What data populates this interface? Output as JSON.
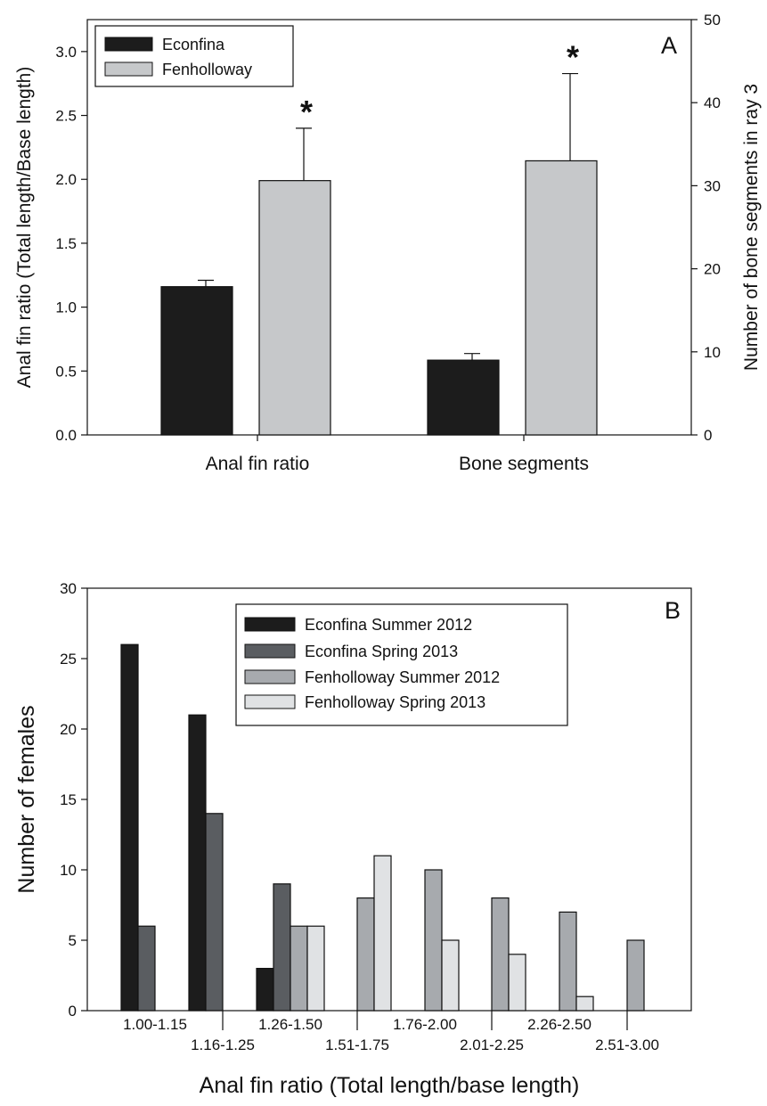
{
  "chart_data": [
    {
      "panel_label": "A",
      "type": "bar",
      "categories": [
        "Anal fin ratio",
        "Bone segments"
      ],
      "ylabel": "Anal fin ratio (Total length/Base length)",
      "ylabel_right": "Number of bone segments in ray 3",
      "ylim": [
        0,
        3.25
      ],
      "yticks": [
        "0.0",
        "0.5",
        "1.0",
        "1.5",
        "2.0",
        "2.5",
        "3.0"
      ],
      "ylim_right": [
        0,
        50
      ],
      "yticks_right": [
        "0",
        "10",
        "20",
        "30",
        "40",
        "50"
      ],
      "legend_position": "top-left",
      "series": [
        {
          "name": "Econfina",
          "color": "#1c1c1c",
          "values": [
            1.16,
            9
          ],
          "errors": [
            0.05,
            0.8
          ],
          "axis": [
            "left",
            "right"
          ]
        },
        {
          "name": "Fenholloway",
          "color": "#c6c8ca",
          "values": [
            1.99,
            33
          ],
          "errors": [
            0.41,
            10.5
          ],
          "axis": [
            "left",
            "right"
          ]
        }
      ],
      "significance_marker": "*"
    },
    {
      "panel_label": "B",
      "type": "bar",
      "categories": [
        "1.00-1.15",
        "1.16-1.25",
        "1.26-1.50",
        "1.51-1.75",
        "1.76-2.00",
        "2.01-2.25",
        "2.26-2.50",
        "2.51-3.00"
      ],
      "xlabel": "Anal fin ratio (Total length/base length)",
      "ylabel": "Number of females",
      "ylim": [
        0,
        30
      ],
      "yticks": [
        "0",
        "5",
        "10",
        "15",
        "20",
        "25",
        "30"
      ],
      "legend_position": "top-right",
      "series": [
        {
          "name": "Econfina Summer 2012",
          "color": "#1c1c1c",
          "values": [
            26,
            21,
            3,
            0,
            0,
            0,
            0,
            0
          ]
        },
        {
          "name": "Econfina Spring 2013",
          "color": "#5a5d61",
          "values": [
            6,
            14,
            9,
            0,
            0,
            0,
            0,
            0
          ]
        },
        {
          "name": "Fenholloway Summer 2012",
          "color": "#a7aaae",
          "values": [
            0,
            0,
            6,
            8,
            10,
            8,
            7,
            5
          ]
        },
        {
          "name": "Fenholloway Spring 2013",
          "color": "#e0e2e4",
          "values": [
            0,
            0,
            6,
            11,
            5,
            4,
            1,
            0
          ]
        }
      ]
    }
  ]
}
